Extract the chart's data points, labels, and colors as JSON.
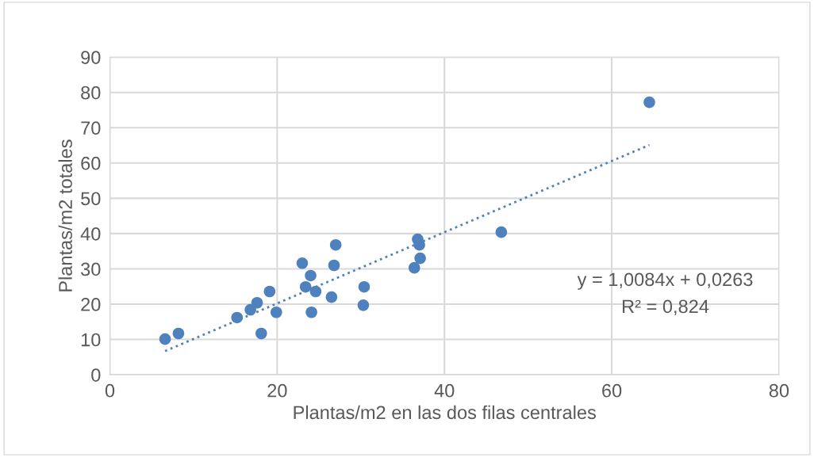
{
  "chart_data": {
    "type": "scatter",
    "xlabel": "Plantas/m2 en las dos filas centrales",
    "ylabel": "Plantas/m2 totales",
    "xlim": [
      0,
      80
    ],
    "xticks": [
      0,
      20,
      40,
      60,
      80
    ],
    "ylim": [
      0,
      90
    ],
    "yticks": [
      0,
      10,
      20,
      30,
      40,
      50,
      60,
      70,
      80,
      90
    ],
    "grid": true,
    "series": [
      {
        "marker": "circle",
        "color": "#4e81bd",
        "x": [
          6.6,
          8.2,
          15.2,
          16.8,
          17.6,
          18.1,
          19.1,
          19.9,
          23.0,
          23.4,
          24.0,
          24.1,
          24.6,
          26.5,
          26.8,
          27.0,
          30.3,
          30.4,
          36.4,
          36.8,
          37.0,
          37.1,
          46.8,
          64.5
        ],
        "values": [
          10.1,
          11.7,
          16.2,
          18.4,
          20.4,
          11.7,
          23.6,
          17.7,
          31.6,
          24.9,
          28.1,
          17.7,
          23.6,
          22.0,
          31.0,
          36.8,
          19.7,
          24.9,
          30.3,
          38.4,
          36.8,
          33.0,
          40.4,
          77.2
        ]
      },
      {
        "type": "line",
        "marker": "none",
        "color": "#4e81bd",
        "line_style": "dotted",
        "x": [
          6.6,
          64.5
        ],
        "values": [
          6.7,
          65.1
        ]
      }
    ],
    "annotations": [
      "y = 1,0084x + 0,0263",
      "R² = 0,824"
    ]
  }
}
